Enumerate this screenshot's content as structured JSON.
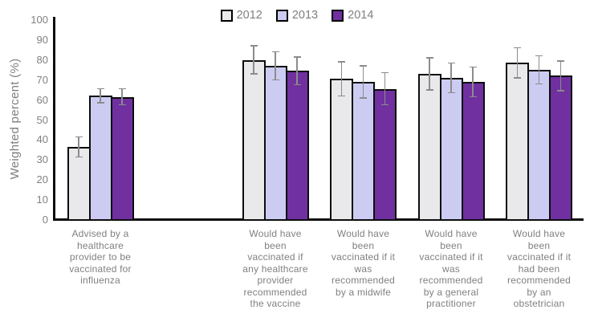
{
  "colors": {
    "background": "#FFFFFF",
    "bar_border": "#0D0D0D",
    "error_bar": "#8C8C8C",
    "axis_line": "#0D0D0D",
    "text": "#808080",
    "series_2012": "#E9E8EA",
    "series_2013": "#CCCCF2",
    "series_2014": "#7030A0"
  },
  "chart_data": {
    "type": "bar",
    "title": "",
    "xlabel": "",
    "ylabel": "Weighted percent (%)",
    "ylim": [
      0,
      100
    ],
    "yticks": [
      0,
      10,
      20,
      30,
      40,
      50,
      60,
      70,
      80,
      90,
      100
    ],
    "grid": false,
    "legend_position": "top-center",
    "error_bars": true,
    "categories": [
      {
        "label": "Advised by a healthcare provider to be vaccinated for influenza",
        "lines": [
          "Advised by a",
          "healthcare",
          "provider to be",
          "vaccinated for",
          "influenza"
        ]
      },
      {
        "label": "Would have been vaccinated if any healthcare provider recommended the vaccine",
        "lines": [
          "Would have",
          "been",
          "vaccinated if",
          "any healthcare",
          "provider",
          "recommended",
          "the vaccine"
        ]
      },
      {
        "label": "Would have been vaccinated if it was recommended by a midwife",
        "lines": [
          "Would have",
          "been",
          "vaccinated if it",
          "was",
          "recommended",
          "by a midwife"
        ]
      },
      {
        "label": "Would have been vaccinated if it was recommended by a general practitioner",
        "lines": [
          "Would have",
          "been",
          "vaccinated if it",
          "was",
          "recommended",
          "by a general",
          "practitioner"
        ]
      },
      {
        "label": "Would have been vaccinated if it had been recommended by an obstetrician",
        "lines": [
          "Would have",
          "been",
          "vaccinated if it",
          "had been",
          "recommended",
          "by an",
          "obstetrician"
        ]
      }
    ],
    "series": [
      {
        "name": "2012",
        "color": "#E9E8EA",
        "values": [
          37,
          80.5,
          71,
          73.5,
          79
        ],
        "error_margins": [
          5,
          7,
          8.5,
          8,
          7.5
        ]
      },
      {
        "name": "2013",
        "color": "#CCCCF2",
        "values": [
          62.5,
          77.5,
          69.5,
          71.5,
          75.5
        ],
        "error_margins": [
          3.5,
          7,
          8,
          7.5,
          7
        ]
      },
      {
        "name": "2014",
        "color": "#7030A0",
        "values": [
          62,
          75,
          66,
          69.5,
          72.5
        ],
        "error_margins": [
          4,
          7,
          8,
          7.5,
          7.5
        ]
      }
    ]
  }
}
